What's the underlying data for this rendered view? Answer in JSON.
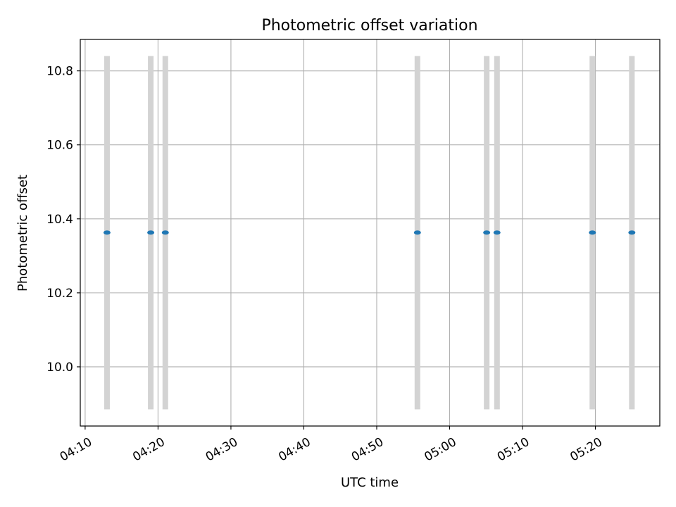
{
  "chart_data": {
    "type": "scatter",
    "title": "Photometric offset variation",
    "xlabel": "UTC time",
    "ylabel": "Photometric offset",
    "x_ticks": [
      "04:10",
      "04:20",
      "04:30",
      "04:40",
      "04:50",
      "05:00",
      "05:10",
      "05:20"
    ],
    "y_ticks": [
      "10.0",
      "10.2",
      "10.4",
      "10.6",
      "10.8"
    ],
    "xlim": [
      "04:09:20",
      "05:28:50"
    ],
    "ylim": [
      9.84,
      10.885
    ],
    "grid": true,
    "errorbar_color": "#d3d3d3",
    "point_color": "#1f77b4",
    "points": [
      {
        "x": "04:13:00",
        "y": 10.363,
        "ylow": 9.885,
        "yhigh": 10.84
      },
      {
        "x": "04:19:00",
        "y": 10.363,
        "ylow": 9.885,
        "yhigh": 10.84
      },
      {
        "x": "04:21:00",
        "y": 10.363,
        "ylow": 9.885,
        "yhigh": 10.84
      },
      {
        "x": "04:55:35",
        "y": 10.363,
        "ylow": 9.885,
        "yhigh": 10.84
      },
      {
        "x": "05:05:05",
        "y": 10.363,
        "ylow": 9.885,
        "yhigh": 10.84
      },
      {
        "x": "05:06:30",
        "y": 10.363,
        "ylow": 9.885,
        "yhigh": 10.84
      },
      {
        "x": "05:19:35",
        "y": 10.363,
        "ylow": 9.885,
        "yhigh": 10.84
      },
      {
        "x": "05:25:00",
        "y": 10.363,
        "ylow": 9.885,
        "yhigh": 10.84
      }
    ]
  }
}
